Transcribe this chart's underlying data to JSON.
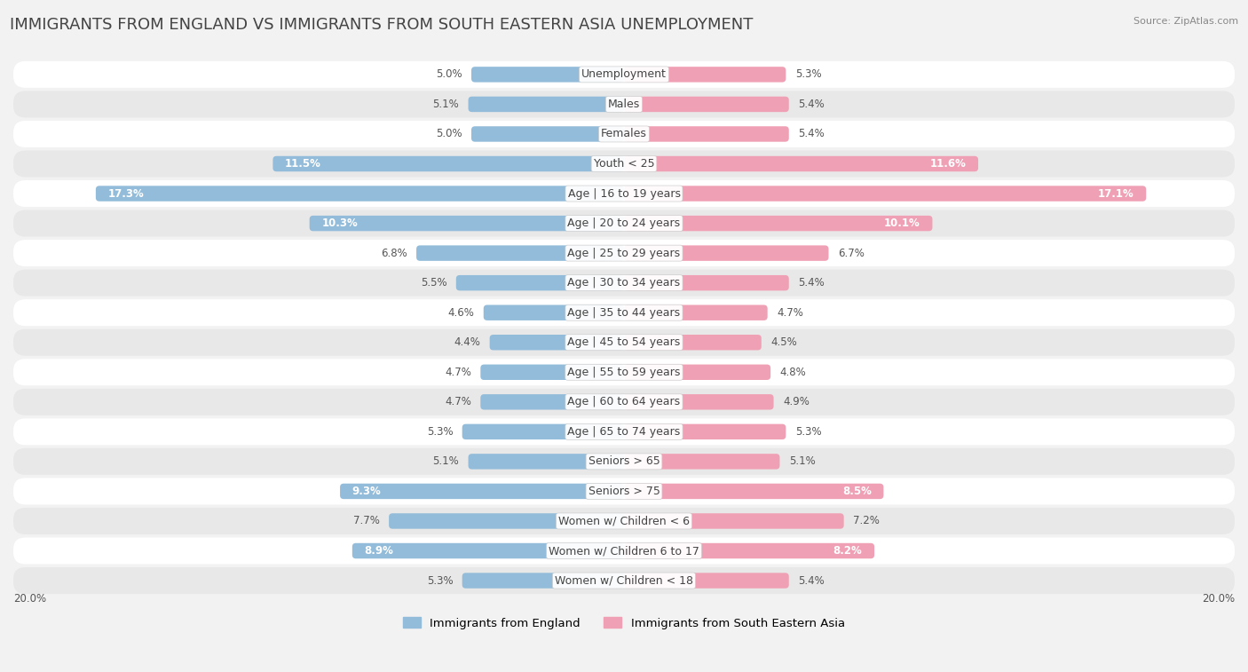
{
  "title": "IMMIGRANTS FROM ENGLAND VS IMMIGRANTS FROM SOUTH EASTERN ASIA UNEMPLOYMENT",
  "source": "Source: ZipAtlas.com",
  "categories": [
    "Unemployment",
    "Males",
    "Females",
    "Youth < 25",
    "Age | 16 to 19 years",
    "Age | 20 to 24 years",
    "Age | 25 to 29 years",
    "Age | 30 to 34 years",
    "Age | 35 to 44 years",
    "Age | 45 to 54 years",
    "Age | 55 to 59 years",
    "Age | 60 to 64 years",
    "Age | 65 to 74 years",
    "Seniors > 65",
    "Seniors > 75",
    "Women w/ Children < 6",
    "Women w/ Children 6 to 17",
    "Women w/ Children < 18"
  ],
  "left_values": [
    5.0,
    5.1,
    5.0,
    11.5,
    17.3,
    10.3,
    6.8,
    5.5,
    4.6,
    4.4,
    4.7,
    4.7,
    5.3,
    5.1,
    9.3,
    7.7,
    8.9,
    5.3
  ],
  "right_values": [
    5.3,
    5.4,
    5.4,
    11.6,
    17.1,
    10.1,
    6.7,
    5.4,
    4.7,
    4.5,
    4.8,
    4.9,
    5.3,
    5.1,
    8.5,
    7.2,
    8.2,
    5.4
  ],
  "left_color": "#92bcd9",
  "right_color": "#f0a0b4",
  "bar_height": 0.52,
  "xlim": 20.0,
  "legend_left": "Immigrants from England",
  "legend_right": "Immigrants from South Eastern Asia",
  "background_color": "#f2f2f2",
  "row_bg_color": "#ffffff",
  "row_alt_color": "#e8e8e8",
  "title_fontsize": 13,
  "label_fontsize": 9,
  "value_fontsize": 8.5,
  "inside_label_threshold": 8.0
}
